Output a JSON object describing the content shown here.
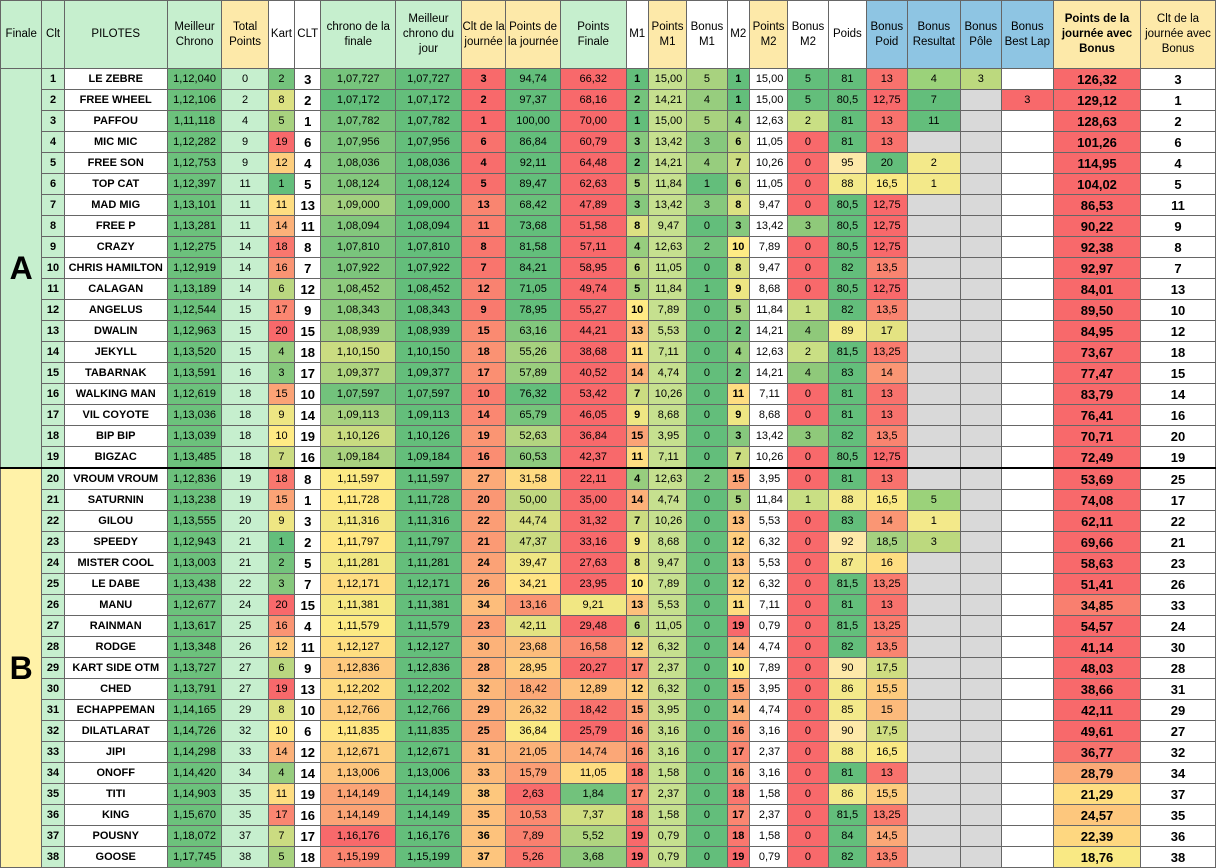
{
  "headers": [
    "Finale",
    "Clt",
    "PILOTES",
    "Meilleur Chrono",
    "Total Points",
    "Kart",
    "CLT",
    "chrono de la finale",
    "Meilleur chrono du jour",
    "Clt de la journée",
    "Points de la journée",
    "Points Finale",
    "M1",
    "Points M1",
    "Bonus M1",
    "M2",
    "Points M2",
    "Bonus M2",
    "Poids",
    "Bonus Poid",
    "Bonus Resultat",
    "Bonus Pôle",
    "Bonus Best Lap",
    "Points de la journée avec Bonus",
    "Clt de la journée avec Bonus"
  ],
  "groups": [
    {
      "label": "A",
      "first": 1,
      "count": 19
    },
    {
      "label": "B",
      "first": 20,
      "count": 19
    }
  ],
  "rows": [
    [
      "1",
      "LE ZEBRE",
      "1,12,040",
      "0",
      "2",
      "3",
      "1,07,727",
      "1,07,727",
      "3",
      "94,74",
      "66,32",
      "1",
      "15,00",
      "5",
      "1",
      "15,00",
      "5",
      "81",
      "13",
      "4",
      "3",
      "",
      "126,32",
      "3"
    ],
    [
      "2",
      "FREE WHEEL",
      "1,12,106",
      "2",
      "8",
      "2",
      "1,07,172",
      "1,07,172",
      "2",
      "97,37",
      "68,16",
      "2",
      "14,21",
      "4",
      "1",
      "15,00",
      "5",
      "80,5",
      "12,75",
      "7",
      "",
      "3",
      "129,12",
      "1"
    ],
    [
      "3",
      "PAFFOU",
      "1,11,118",
      "4",
      "5",
      "1",
      "1,07,782",
      "1,07,782",
      "1",
      "100,00",
      "70,00",
      "1",
      "15,00",
      "5",
      "4",
      "12,63",
      "2",
      "81",
      "13",
      "11",
      "",
      "",
      "128,63",
      "2"
    ],
    [
      "4",
      "MIC MIC",
      "1,12,282",
      "9",
      "19",
      "6",
      "1,07,956",
      "1,07,956",
      "6",
      "86,84",
      "60,79",
      "3",
      "13,42",
      "3",
      "6",
      "11,05",
      "0",
      "81",
      "13",
      "",
      "",
      "",
      "101,26",
      "6"
    ],
    [
      "5",
      "FREE SON",
      "1,12,753",
      "9",
      "12",
      "4",
      "1,08,036",
      "1,08,036",
      "4",
      "92,11",
      "64,48",
      "2",
      "14,21",
      "4",
      "7",
      "10,26",
      "0",
      "95",
      "20",
      "2",
      "",
      "",
      "114,95",
      "4"
    ],
    [
      "6",
      "TOP CAT",
      "1,12,397",
      "11",
      "1",
      "5",
      "1,08,124",
      "1,08,124",
      "5",
      "89,47",
      "62,63",
      "5",
      "11,84",
      "1",
      "6",
      "11,05",
      "0",
      "88",
      "16,5",
      "1",
      "",
      "",
      "104,02",
      "5"
    ],
    [
      "7",
      "MAD MIG",
      "1,13,101",
      "11",
      "11",
      "13",
      "1,09,000",
      "1,09,000",
      "13",
      "68,42",
      "47,89",
      "3",
      "13,42",
      "3",
      "8",
      "9,47",
      "0",
      "80,5",
      "12,75",
      "",
      "",
      "",
      "86,53",
      "11"
    ],
    [
      "8",
      "FREE P",
      "1,13,281",
      "11",
      "14",
      "11",
      "1,08,094",
      "1,08,094",
      "11",
      "73,68",
      "51,58",
      "8",
      "9,47",
      "0",
      "3",
      "13,42",
      "3",
      "80,5",
      "12,75",
      "",
      "",
      "",
      "90,22",
      "9"
    ],
    [
      "9",
      "CRAZY",
      "1,12,275",
      "14",
      "18",
      "8",
      "1,07,810",
      "1,07,810",
      "8",
      "81,58",
      "57,11",
      "4",
      "12,63",
      "2",
      "10",
      "7,89",
      "0",
      "80,5",
      "12,75",
      "",
      "",
      "",
      "92,38",
      "8"
    ],
    [
      "10",
      "CHRIS HAMILTON",
      "1,12,919",
      "14",
      "16",
      "7",
      "1,07,922",
      "1,07,922",
      "7",
      "84,21",
      "58,95",
      "6",
      "11,05",
      "0",
      "8",
      "9,47",
      "0",
      "82",
      "13,5",
      "",
      "",
      "",
      "92,97",
      "7"
    ],
    [
      "11",
      "CALAGAN",
      "1,13,189",
      "14",
      "6",
      "12",
      "1,08,452",
      "1,08,452",
      "12",
      "71,05",
      "49,74",
      "5",
      "11,84",
      "1",
      "9",
      "8,68",
      "0",
      "80,5",
      "12,75",
      "",
      "",
      "",
      "84,01",
      "13"
    ],
    [
      "12",
      "ANGELUS",
      "1,12,544",
      "15",
      "17",
      "9",
      "1,08,343",
      "1,08,343",
      "9",
      "78,95",
      "55,27",
      "10",
      "7,89",
      "0",
      "5",
      "11,84",
      "1",
      "82",
      "13,5",
      "",
      "",
      "",
      "89,50",
      "10"
    ],
    [
      "13",
      "DWALIN",
      "1,12,963",
      "15",
      "20",
      "15",
      "1,08,939",
      "1,08,939",
      "15",
      "63,16",
      "44,21",
      "13",
      "5,53",
      "0",
      "2",
      "14,21",
      "4",
      "89",
      "17",
      "",
      "",
      "",
      "84,95",
      "12"
    ],
    [
      "14",
      "JEKYLL",
      "1,13,520",
      "15",
      "4",
      "18",
      "1,10,150",
      "1,10,150",
      "18",
      "55,26",
      "38,68",
      "11",
      "7,11",
      "0",
      "4",
      "12,63",
      "2",
      "81,5",
      "13,25",
      "",
      "",
      "",
      "73,67",
      "18"
    ],
    [
      "15",
      "TABARNAK",
      "1,13,591",
      "16",
      "3",
      "17",
      "1,09,377",
      "1,09,377",
      "17",
      "57,89",
      "40,52",
      "14",
      "4,74",
      "0",
      "2",
      "14,21",
      "4",
      "83",
      "14",
      "",
      "",
      "",
      "77,47",
      "15"
    ],
    [
      "16",
      "WALKING MAN",
      "1,12,619",
      "18",
      "15",
      "10",
      "1,07,597",
      "1,07,597",
      "10",
      "76,32",
      "53,42",
      "7",
      "10,26",
      "0",
      "11",
      "7,11",
      "0",
      "81",
      "13",
      "",
      "",
      "",
      "83,79",
      "14"
    ],
    [
      "17",
      "VIL COYOTE",
      "1,13,036",
      "18",
      "9",
      "14",
      "1,09,113",
      "1,09,113",
      "14",
      "65,79",
      "46,05",
      "9",
      "8,68",
      "0",
      "9",
      "8,68",
      "0",
      "81",
      "13",
      "",
      "",
      "",
      "76,41",
      "16"
    ],
    [
      "18",
      "BIP BIP",
      "1,13,039",
      "18",
      "10",
      "19",
      "1,10,126",
      "1,10,126",
      "19",
      "52,63",
      "36,84",
      "15",
      "3,95",
      "0",
      "3",
      "13,42",
      "3",
      "82",
      "13,5",
      "",
      "",
      "",
      "70,71",
      "20"
    ],
    [
      "19",
      "BIGZAC",
      "1,13,485",
      "18",
      "7",
      "16",
      "1,09,184",
      "1,09,184",
      "16",
      "60,53",
      "42,37",
      "11",
      "7,11",
      "0",
      "7",
      "10,26",
      "0",
      "80,5",
      "12,75",
      "",
      "",
      "",
      "72,49",
      "19"
    ],
    [
      "20",
      "VROUM VROUM",
      "1,12,836",
      "19",
      "18",
      "8",
      "1,11,597",
      "1,11,597",
      "27",
      "31,58",
      "22,11",
      "4",
      "12,63",
      "2",
      "15",
      "3,95",
      "0",
      "81",
      "13",
      "",
      "",
      "",
      "53,69",
      "25"
    ],
    [
      "21",
      "SATURNIN",
      "1,13,238",
      "19",
      "15",
      "1",
      "1,11,728",
      "1,11,728",
      "20",
      "50,00",
      "35,00",
      "14",
      "4,74",
      "0",
      "5",
      "11,84",
      "1",
      "88",
      "16,5",
      "5",
      "",
      "",
      "74,08",
      "17"
    ],
    [
      "22",
      "GILOU",
      "1,13,555",
      "20",
      "9",
      "3",
      "1,11,316",
      "1,11,316",
      "22",
      "44,74",
      "31,32",
      "7",
      "10,26",
      "0",
      "13",
      "5,53",
      "0",
      "83",
      "14",
      "1",
      "",
      "",
      "62,11",
      "22"
    ],
    [
      "23",
      "SPEEDY",
      "1,12,943",
      "21",
      "1",
      "2",
      "1,11,797",
      "1,11,797",
      "21",
      "47,37",
      "33,16",
      "9",
      "8,68",
      "0",
      "12",
      "6,32",
      "0",
      "92",
      "18,5",
      "3",
      "",
      "",
      "69,66",
      "21"
    ],
    [
      "24",
      "MISTER COOL",
      "1,13,003",
      "21",
      "2",
      "5",
      "1,11,281",
      "1,11,281",
      "24",
      "39,47",
      "27,63",
      "8",
      "9,47",
      "0",
      "13",
      "5,53",
      "0",
      "87",
      "16",
      "",
      "",
      "",
      "58,63",
      "23"
    ],
    [
      "25",
      "LE DABE",
      "1,13,438",
      "22",
      "3",
      "7",
      "1,12,171",
      "1,12,171",
      "26",
      "34,21",
      "23,95",
      "10",
      "7,89",
      "0",
      "12",
      "6,32",
      "0",
      "81,5",
      "13,25",
      "",
      "",
      "",
      "51,41",
      "26"
    ],
    [
      "26",
      "MANU",
      "1,12,677",
      "24",
      "20",
      "15",
      "1,11,381",
      "1,11,381",
      "34",
      "13,16",
      "9,21",
      "13",
      "5,53",
      "0",
      "11",
      "7,11",
      "0",
      "81",
      "13",
      "",
      "",
      "",
      "34,85",
      "33"
    ],
    [
      "27",
      "RAINMAN",
      "1,13,617",
      "25",
      "16",
      "4",
      "1,11,579",
      "1,11,579",
      "23",
      "42,11",
      "29,48",
      "6",
      "11,05",
      "0",
      "19",
      "0,79",
      "0",
      "81,5",
      "13,25",
      "",
      "",
      "",
      "54,57",
      "24"
    ],
    [
      "28",
      "RODGE",
      "1,13,348",
      "26",
      "12",
      "11",
      "1,12,127",
      "1,12,127",
      "30",
      "23,68",
      "16,58",
      "12",
      "6,32",
      "0",
      "14",
      "4,74",
      "0",
      "82",
      "13,5",
      "",
      "",
      "",
      "41,14",
      "30"
    ],
    [
      "29",
      "KART SIDE OTM",
      "1,13,727",
      "27",
      "6",
      "9",
      "1,12,836",
      "1,12,836",
      "28",
      "28,95",
      "20,27",
      "17",
      "2,37",
      "0",
      "10",
      "7,89",
      "0",
      "90",
      "17,5",
      "",
      "",
      "",
      "48,03",
      "28"
    ],
    [
      "30",
      "CHED",
      "1,13,791",
      "27",
      "19",
      "13",
      "1,12,202",
      "1,12,202",
      "32",
      "18,42",
      "12,89",
      "12",
      "6,32",
      "0",
      "15",
      "3,95",
      "0",
      "86",
      "15,5",
      "",
      "",
      "",
      "38,66",
      "31"
    ],
    [
      "31",
      "ECHAPPEMAN",
      "1,14,165",
      "29",
      "8",
      "10",
      "1,12,766",
      "1,12,766",
      "29",
      "26,32",
      "18,42",
      "15",
      "3,95",
      "0",
      "14",
      "4,74",
      "0",
      "85",
      "15",
      "",
      "",
      "",
      "42,11",
      "29"
    ],
    [
      "32",
      "DILATLARAT",
      "1,14,726",
      "32",
      "10",
      "6",
      "1,11,835",
      "1,11,835",
      "25",
      "36,84",
      "25,79",
      "16",
      "3,16",
      "0",
      "16",
      "3,16",
      "0",
      "90",
      "17,5",
      "",
      "",
      "",
      "49,61",
      "27"
    ],
    [
      "33",
      "JIPI",
      "1,14,298",
      "33",
      "14",
      "12",
      "1,12,671",
      "1,12,671",
      "31",
      "21,05",
      "14,74",
      "16",
      "3,16",
      "0",
      "17",
      "2,37",
      "0",
      "88",
      "16,5",
      "",
      "",
      "",
      "36,77",
      "32"
    ],
    [
      "34",
      "ONOFF",
      "1,14,420",
      "34",
      "4",
      "14",
      "1,13,006",
      "1,13,006",
      "33",
      "15,79",
      "11,05",
      "18",
      "1,58",
      "0",
      "16",
      "3,16",
      "0",
      "81",
      "13",
      "",
      "",
      "",
      "28,79",
      "34"
    ],
    [
      "35",
      "TITI",
      "1,14,903",
      "35",
      "11",
      "19",
      "1,14,149",
      "1,14,149",
      "38",
      "2,63",
      "1,84",
      "17",
      "2,37",
      "0",
      "18",
      "1,58",
      "0",
      "86",
      "15,5",
      "",
      "",
      "",
      "21,29",
      "37"
    ],
    [
      "36",
      "KING",
      "1,15,670",
      "35",
      "17",
      "16",
      "1,14,149",
      "1,14,149",
      "35",
      "10,53",
      "7,37",
      "18",
      "1,58",
      "0",
      "17",
      "2,37",
      "0",
      "81,5",
      "13,25",
      "",
      "",
      "",
      "24,57",
      "35"
    ],
    [
      "37",
      "POUSNY",
      "1,18,072",
      "37",
      "7",
      "17",
      "1,16,176",
      "1,16,176",
      "36",
      "7,89",
      "5,52",
      "19",
      "0,79",
      "0",
      "18",
      "1,58",
      "0",
      "84",
      "14,5",
      "",
      "",
      "",
      "22,39",
      "36"
    ],
    [
      "38",
      "GOOSE",
      "1,17,745",
      "38",
      "5",
      "18",
      "1,15,199",
      "1,15,199",
      "37",
      "5,26",
      "3,68",
      "19",
      "0,79",
      "0",
      "19",
      "0,79",
      "0",
      "82",
      "13,5",
      "",
      "",
      "",
      "18,76",
      "38"
    ]
  ]
}
